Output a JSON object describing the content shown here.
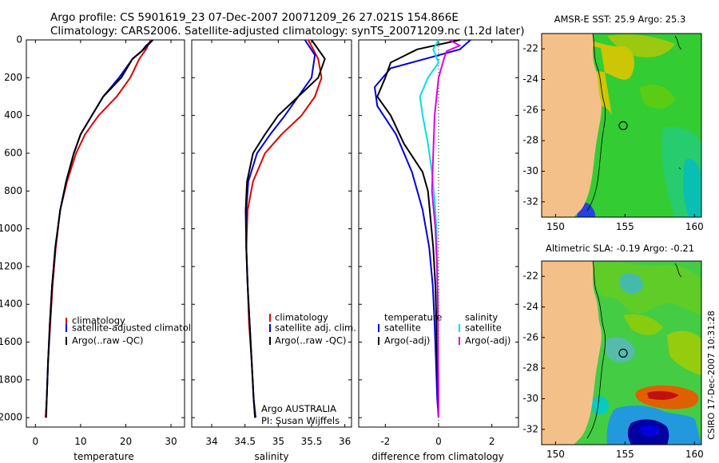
{
  "header": {
    "line1": "Argo profile: CS 5901619_23 07-Dec-2007 20071209_26 27.021S 154.866E",
    "line2": "Climatology: CARS2006. Satellite-adjusted climatology: synTS_20071209.nc (1.2d later)"
  },
  "side_note": "CSIRO 17-Dec-2007 10:31:28",
  "credit": {
    "line1": "Argo AUSTRALIA",
    "line2": "PI: Susan Wijffels"
  },
  "colors": {
    "red": "#e00000",
    "blue": "#0000e0",
    "black": "#000000",
    "cyan": "#00e0e0",
    "magenta": "#e000e0"
  },
  "chart_data": [
    {
      "id": "temperature",
      "type": "line",
      "xlabel": "temperature",
      "ylabel": "",
      "xlim": [
        -2,
        33
      ],
      "ylim": [
        2050,
        0
      ],
      "x_ticks": [
        0,
        10,
        20,
        30
      ],
      "y_ticks": [
        0,
        200,
        400,
        600,
        800,
        1000,
        1200,
        1400,
        1600,
        1800,
        2000
      ],
      "legend_position": "lower-right",
      "series": [
        {
          "name": "climatology",
          "color": "#e00000",
          "points": [
            [
              25.5,
              0
            ],
            [
              24.5,
              50
            ],
            [
              23,
              100
            ],
            [
              21,
              200
            ],
            [
              18,
              300
            ],
            [
              14,
              400
            ],
            [
              11,
              500
            ],
            [
              9,
              600
            ],
            [
              7,
              750
            ],
            [
              5.5,
              900
            ],
            [
              4.5,
              1100
            ],
            [
              3.8,
              1300
            ],
            [
              3.3,
              1500
            ],
            [
              2.8,
              1700
            ],
            [
              2.5,
              1900
            ],
            [
              2.4,
              2000
            ]
          ]
        },
        {
          "name": "satellite-adjusted climatology",
          "color": "#0000e0",
          "points": [
            [
              26,
              0
            ],
            [
              24,
              50
            ],
            [
              21.5,
              100
            ],
            [
              18.5,
              200
            ],
            [
              15,
              300
            ],
            [
              12.5,
              400
            ],
            [
              10,
              500
            ],
            [
              8.5,
              600
            ],
            [
              6.8,
              750
            ],
            [
              5.5,
              900
            ],
            [
              4.4,
              1100
            ],
            [
              3.7,
              1300
            ],
            [
              3.2,
              1500
            ],
            [
              2.8,
              1700
            ],
            [
              2.5,
              1900
            ],
            [
              2.3,
              2000
            ]
          ]
        },
        {
          "name": "Argo(..raw -QC)",
          "color": "#000000",
          "points": [
            [
              26,
              0
            ],
            [
              24.5,
              30
            ],
            [
              23.5,
              60
            ],
            [
              21.5,
              100
            ],
            [
              19,
              200
            ],
            [
              15,
              300
            ],
            [
              12.5,
              400
            ],
            [
              10,
              500
            ],
            [
              8.5,
              600
            ],
            [
              6.8,
              750
            ],
            [
              5.5,
              900
            ],
            [
              4.4,
              1100
            ],
            [
              3.7,
              1300
            ],
            [
              3.2,
              1500
            ],
            [
              2.8,
              1700
            ],
            [
              2.5,
              1900
            ],
            [
              2.3,
              2000
            ]
          ]
        }
      ]
    },
    {
      "id": "salinity",
      "type": "line",
      "xlabel": "salinity",
      "ylabel": "",
      "xlim": [
        33.7,
        36.1
      ],
      "ylim": [
        2050,
        0
      ],
      "x_ticks": [
        34,
        34.5,
        35,
        35.5,
        36
      ],
      "x_tick_labels": [
        "34",
        "34.5",
        "35",
        "35.5",
        "36"
      ],
      "y_ticks": [
        0,
        200,
        400,
        600,
        800,
        1000,
        1200,
        1400,
        1600,
        1800,
        2000
      ],
      "legend_position": "lower-right",
      "series": [
        {
          "name": "climatology",
          "color": "#e00000",
          "points": [
            [
              35.45,
              0
            ],
            [
              35.6,
              100
            ],
            [
              35.65,
              200
            ],
            [
              35.55,
              300
            ],
            [
              35.35,
              400
            ],
            [
              35.05,
              500
            ],
            [
              34.8,
              600
            ],
            [
              34.62,
              750
            ],
            [
              34.54,
              900
            ],
            [
              34.52,
              1100
            ],
            [
              34.54,
              1300
            ],
            [
              34.56,
              1500
            ],
            [
              34.6,
              1700
            ],
            [
              34.63,
              1900
            ],
            [
              34.65,
              2000
            ]
          ]
        },
        {
          "name": "satellite adj. clim.",
          "color": "#0000e0",
          "points": [
            [
              35.4,
              0
            ],
            [
              35.55,
              80
            ],
            [
              35.5,
              200
            ],
            [
              35.3,
              300
            ],
            [
              35.1,
              400
            ],
            [
              34.88,
              500
            ],
            [
              34.68,
              600
            ],
            [
              34.55,
              750
            ],
            [
              34.52,
              900
            ],
            [
              34.52,
              1100
            ],
            [
              34.54,
              1300
            ],
            [
              34.57,
              1500
            ],
            [
              34.6,
              1700
            ],
            [
              34.63,
              1900
            ],
            [
              34.66,
              2000
            ]
          ]
        },
        {
          "name": "Argo(..raw -QC)",
          "color": "#000000",
          "points": [
            [
              35.5,
              0
            ],
            [
              35.7,
              100
            ],
            [
              35.6,
              200
            ],
            [
              35.3,
              300
            ],
            [
              35.0,
              400
            ],
            [
              34.8,
              500
            ],
            [
              34.62,
              600
            ],
            [
              34.53,
              750
            ],
            [
              34.51,
              900
            ],
            [
              34.52,
              1100
            ],
            [
              34.54,
              1300
            ],
            [
              34.57,
              1500
            ],
            [
              34.6,
              1700
            ],
            [
              34.63,
              1900
            ],
            [
              34.65,
              2000
            ]
          ]
        }
      ]
    },
    {
      "id": "difference",
      "type": "line",
      "xlabel": "difference from climatology",
      "ylabel": "",
      "xlim": [
        -3,
        3
      ],
      "ylim": [
        2050,
        0
      ],
      "x_ticks": [
        -2,
        0,
        2
      ],
      "y_ticks": [
        0,
        200,
        400,
        600,
        800,
        1000,
        1200,
        1400,
        1600,
        1800,
        2000
      ],
      "zero_line": "dotted",
      "legend_position": "lower",
      "legend_groups": [
        "temperature",
        "salinity"
      ],
      "series": [
        {
          "name": "satellite",
          "group": "temperature",
          "color": "#0000e0",
          "points": [
            [
              1.2,
              0
            ],
            [
              0.8,
              50
            ],
            [
              -0.5,
              100
            ],
            [
              -1.8,
              150
            ],
            [
              -2.4,
              250
            ],
            [
              -2.3,
              350
            ],
            [
              -1.6,
              500
            ],
            [
              -1.0,
              700
            ],
            [
              -0.6,
              900
            ],
            [
              -0.35,
              1100
            ],
            [
              -0.22,
              1300
            ],
            [
              -0.15,
              1500
            ],
            [
              -0.1,
              1700
            ],
            [
              -0.05,
              1900
            ],
            [
              0.0,
              2000
            ]
          ]
        },
        {
          "name": "Argo(-adj)",
          "group": "temperature",
          "color": "#000000",
          "points": [
            [
              0.8,
              0
            ],
            [
              -0.8,
              50
            ],
            [
              -1.8,
              120
            ],
            [
              -2.0,
              200
            ],
            [
              -2.3,
              300
            ],
            [
              -1.8,
              400
            ],
            [
              -1.3,
              550
            ],
            [
              -0.6,
              700
            ],
            [
              -0.4,
              800
            ],
            [
              -0.2,
              1100
            ],
            [
              -0.12,
              1300
            ],
            [
              -0.08,
              1500
            ],
            [
              -0.05,
              1700
            ],
            [
              -0.02,
              1900
            ],
            [
              0.0,
              2000
            ]
          ]
        },
        {
          "name": "satellite",
          "group": "salinity",
          "color": "#00e0e0",
          "points": [
            [
              0.0,
              0
            ],
            [
              -0.2,
              50
            ],
            [
              0.0,
              120
            ],
            [
              -0.4,
              200
            ],
            [
              -0.7,
              300
            ],
            [
              -0.6,
              400
            ],
            [
              -0.4,
              550
            ],
            [
              -0.25,
              700
            ],
            [
              -0.15,
              850
            ],
            [
              -0.08,
              1000
            ],
            [
              -0.05,
              1200
            ],
            [
              -0.03,
              1400
            ],
            [
              -0.02,
              1600
            ],
            [
              -0.01,
              1800
            ],
            [
              0.0,
              2000
            ]
          ]
        },
        {
          "name": "Argo(-adj)",
          "group": "salinity",
          "color": "#e000e0",
          "points": [
            [
              0.4,
              0
            ],
            [
              0.8,
              30
            ],
            [
              0.3,
              60
            ],
            [
              0.2,
              100
            ],
            [
              0.0,
              200
            ],
            [
              -0.15,
              400
            ],
            [
              -0.2,
              600
            ],
            [
              -0.25,
              800
            ],
            [
              -0.12,
              1000
            ],
            [
              -0.06,
              1200
            ],
            [
              -0.03,
              1400
            ],
            [
              -0.02,
              1600
            ],
            [
              -0.01,
              1800
            ],
            [
              0.0,
              2000
            ]
          ]
        }
      ]
    },
    {
      "id": "sst_map",
      "type": "heatmap",
      "title": "AMSR-E SST: 25.9 Argo: 25.3",
      "xlim": [
        149,
        160.5
      ],
      "ylim": [
        -33,
        -21
      ],
      "x_ticks": [
        150,
        155,
        160
      ],
      "y_ticks": [
        -22,
        -24,
        -26,
        -28,
        -30,
        -32
      ],
      "marker": [
        154.866,
        -27.021
      ]
    },
    {
      "id": "sla_map",
      "type": "heatmap",
      "title": "Altimetric SLA: -0.19 Argo: -0.21",
      "xlim": [
        149,
        160.5
      ],
      "ylim": [
        -33,
        -21
      ],
      "x_ticks": [
        150,
        155,
        160
      ],
      "y_ticks": [
        -22,
        -24,
        -26,
        -28,
        -30,
        -32
      ],
      "marker": [
        154.866,
        -27.021
      ]
    }
  ]
}
